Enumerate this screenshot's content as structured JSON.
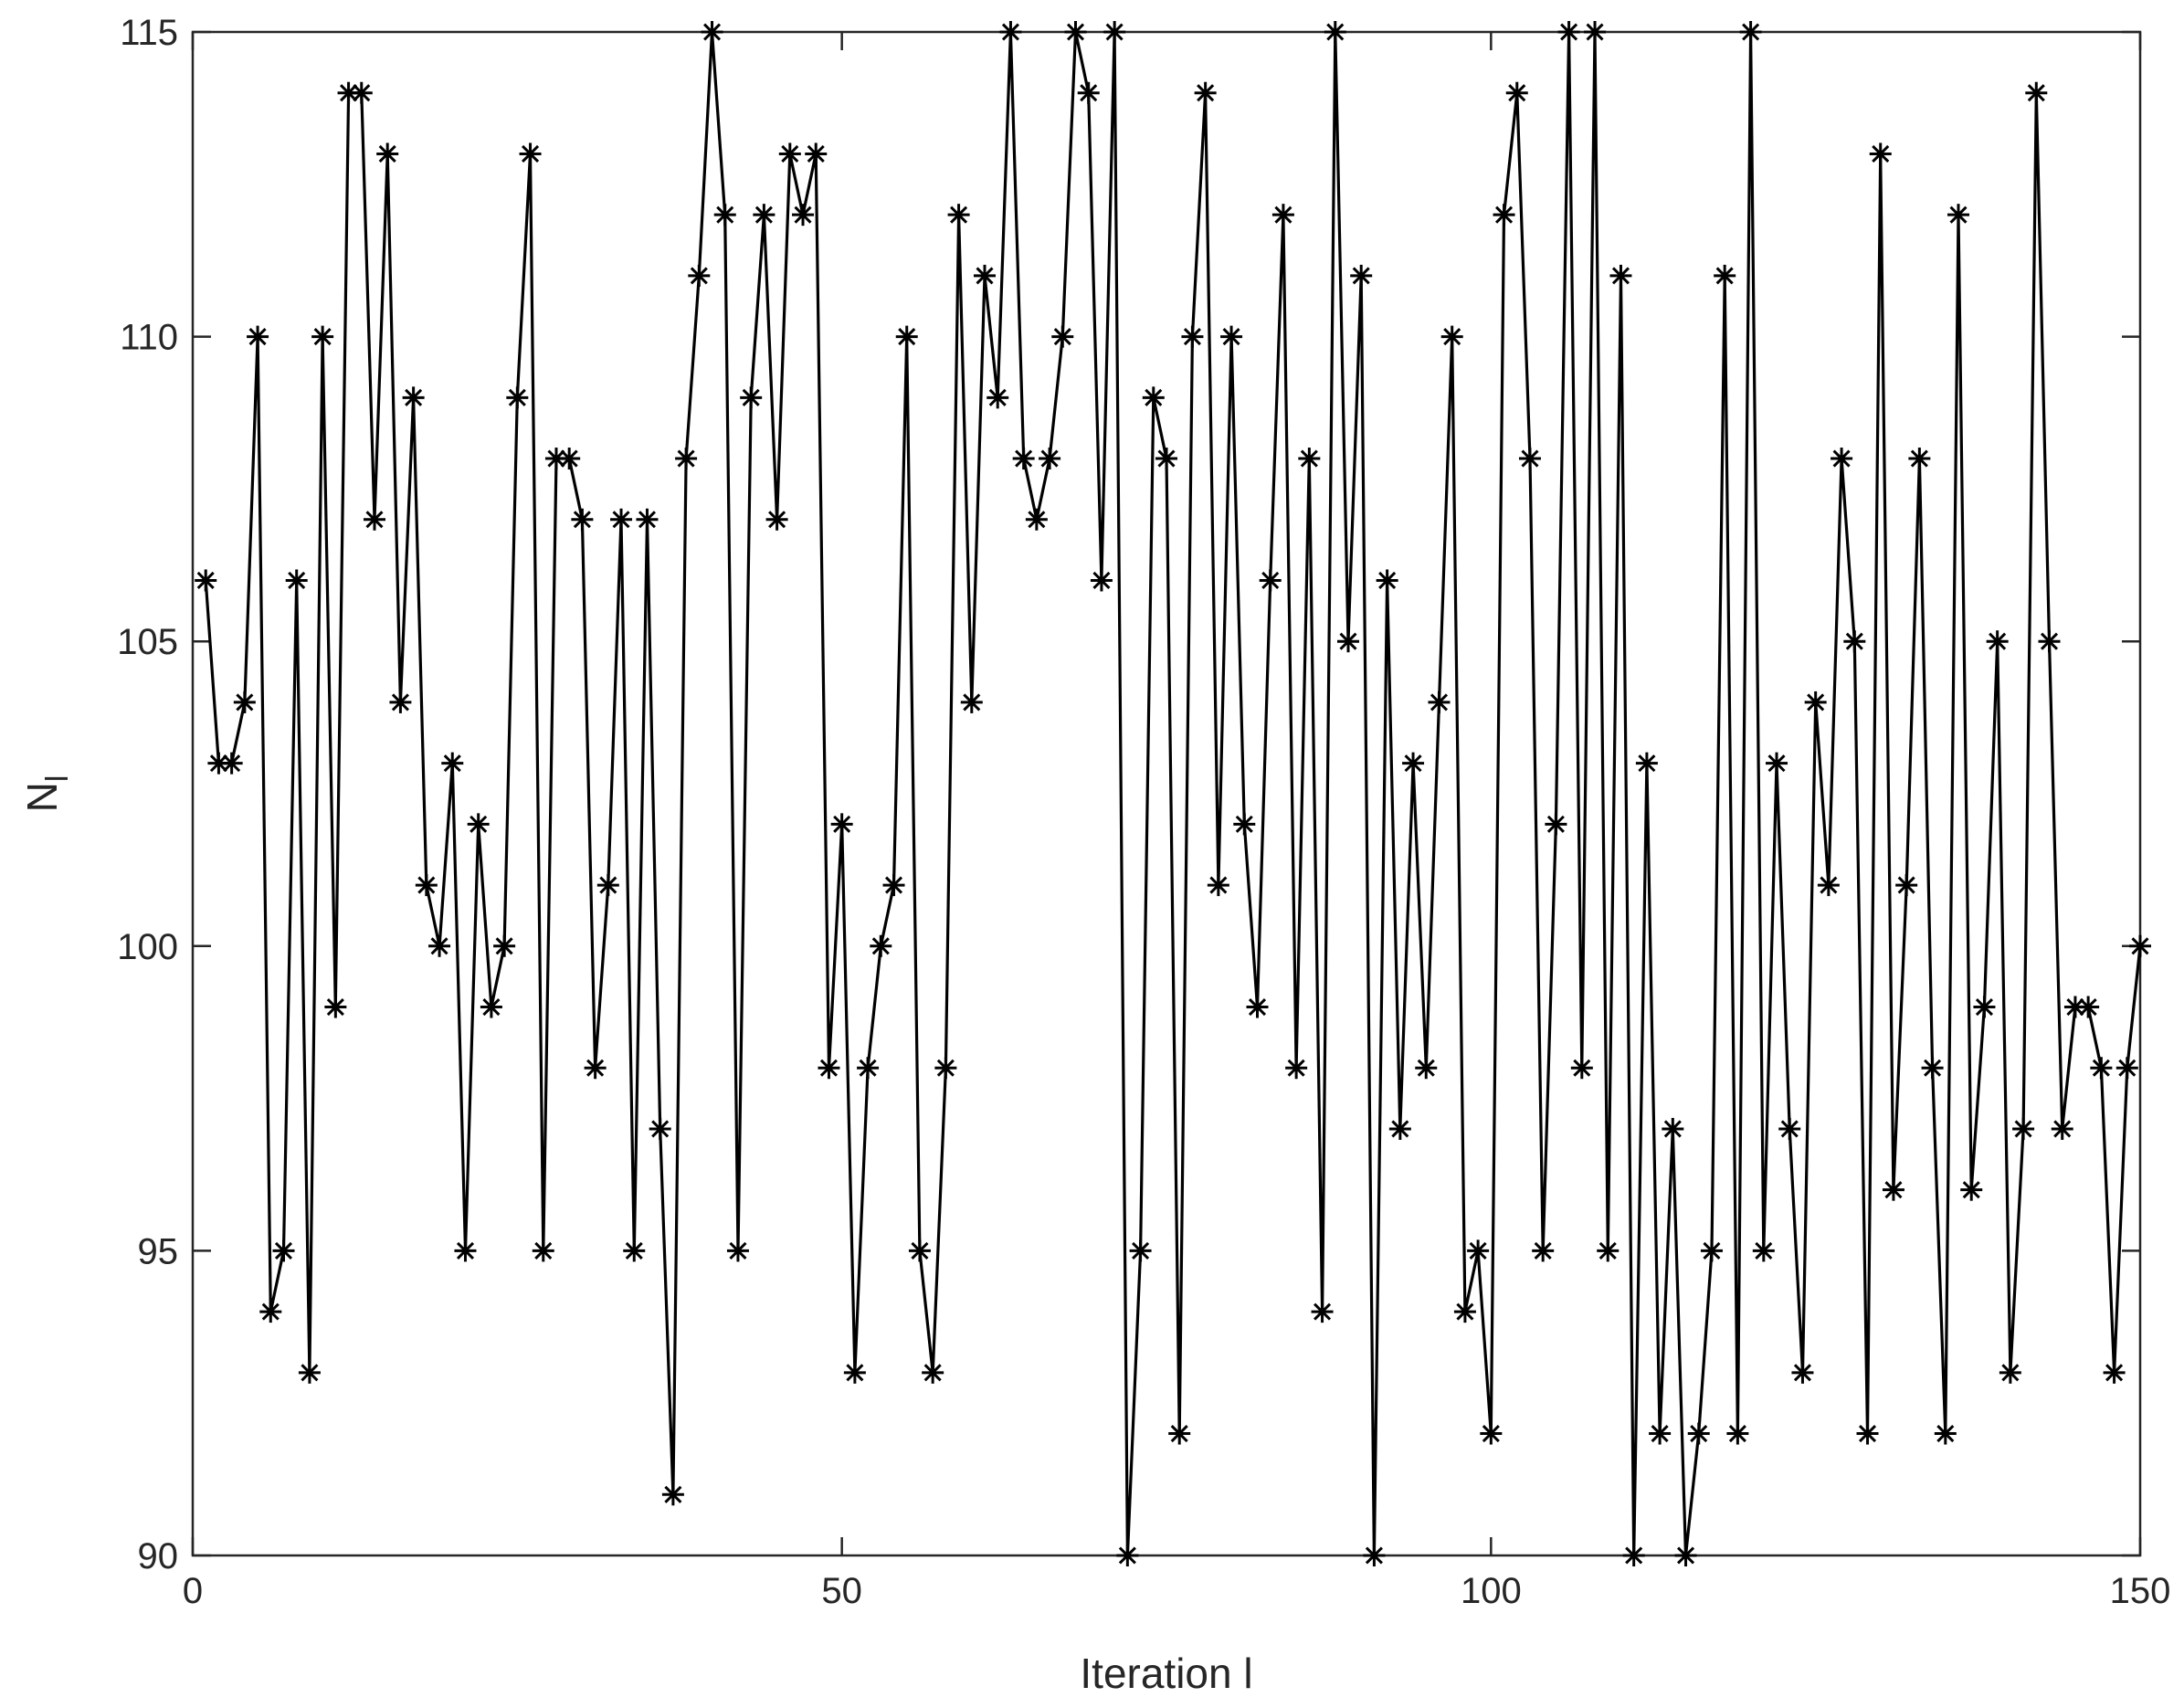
{
  "chart_data": {
    "type": "line",
    "title": "",
    "xlabel": "Iteration l",
    "ylabel_main": "N",
    "ylabel_sub": "l",
    "xlim": [
      0,
      150
    ],
    "ylim": [
      90,
      115
    ],
    "xticks": [
      0,
      50,
      100,
      150
    ],
    "yticks": [
      90,
      95,
      100,
      105,
      110,
      115
    ],
    "grid": false,
    "legend": "none",
    "line_color": "#000000",
    "marker": "asterisk",
    "series": [
      {
        "x": [
          1,
          2,
          3,
          4,
          5,
          6,
          7,
          8,
          9,
          10,
          11,
          12,
          13,
          14,
          15,
          16,
          17,
          18,
          19,
          20,
          21,
          22,
          23,
          24,
          25,
          26,
          27,
          28,
          29,
          30,
          31,
          32,
          33,
          34,
          35,
          36,
          37,
          38,
          39,
          40,
          41,
          42,
          43,
          44,
          45,
          46,
          47,
          48,
          49,
          50,
          51,
          52,
          53,
          54,
          55,
          56,
          57,
          58,
          59,
          60,
          61,
          62,
          63,
          64,
          65,
          66,
          67,
          68,
          69,
          70,
          71,
          72,
          73,
          74,
          75,
          76,
          77,
          78,
          79,
          80,
          81,
          82,
          83,
          84,
          85,
          86,
          87,
          88,
          89,
          90,
          91,
          92,
          93,
          94,
          95,
          96,
          97,
          98,
          99,
          100,
          101,
          102,
          103,
          104,
          105,
          106,
          107,
          108,
          109,
          110,
          111,
          112,
          113,
          114,
          115,
          116,
          117,
          118,
          119,
          120,
          121,
          122,
          123,
          124,
          125,
          126,
          127,
          128,
          129,
          130,
          131,
          132,
          133,
          134,
          135,
          136,
          137,
          138,
          139,
          140,
          141,
          142,
          143,
          144,
          145,
          146,
          147,
          148,
          149,
          150
        ],
        "values": [
          106,
          103,
          103,
          104,
          110,
          94,
          95,
          106,
          93,
          110,
          99,
          114,
          114,
          107,
          113,
          104,
          109,
          101,
          100,
          103,
          95,
          102,
          99,
          100,
          109,
          113,
          95,
          108,
          108,
          107,
          98,
          101,
          107,
          95,
          107,
          97,
          91,
          108,
          111,
          115,
          112,
          95,
          109,
          112,
          107,
          113,
          112,
          113,
          98,
          102,
          93,
          98,
          100,
          101,
          110,
          95,
          93,
          98,
          112,
          104,
          111,
          109,
          115,
          108,
          107,
          108,
          110,
          115,
          114,
          106,
          115,
          90,
          95,
          109,
          108,
          92,
          110,
          114,
          101,
          110,
          102,
          99,
          106,
          112,
          98,
          108,
          94,
          115,
          105,
          111,
          90,
          106,
          97,
          103,
          98,
          104,
          110,
          94,
          95,
          92,
          112,
          114,
          108,
          95,
          102,
          115,
          98,
          115,
          95,
          111,
          90,
          103,
          92,
          97,
          90,
          92,
          95,
          111,
          92,
          115,
          95,
          103,
          97,
          93,
          104,
          101,
          108,
          105,
          92,
          113,
          96,
          101,
          108,
          98,
          92,
          112,
          96,
          99,
          105,
          93,
          97,
          114,
          105,
          97,
          99,
          99,
          98,
          93,
          98,
          100
        ]
      }
    ]
  }
}
